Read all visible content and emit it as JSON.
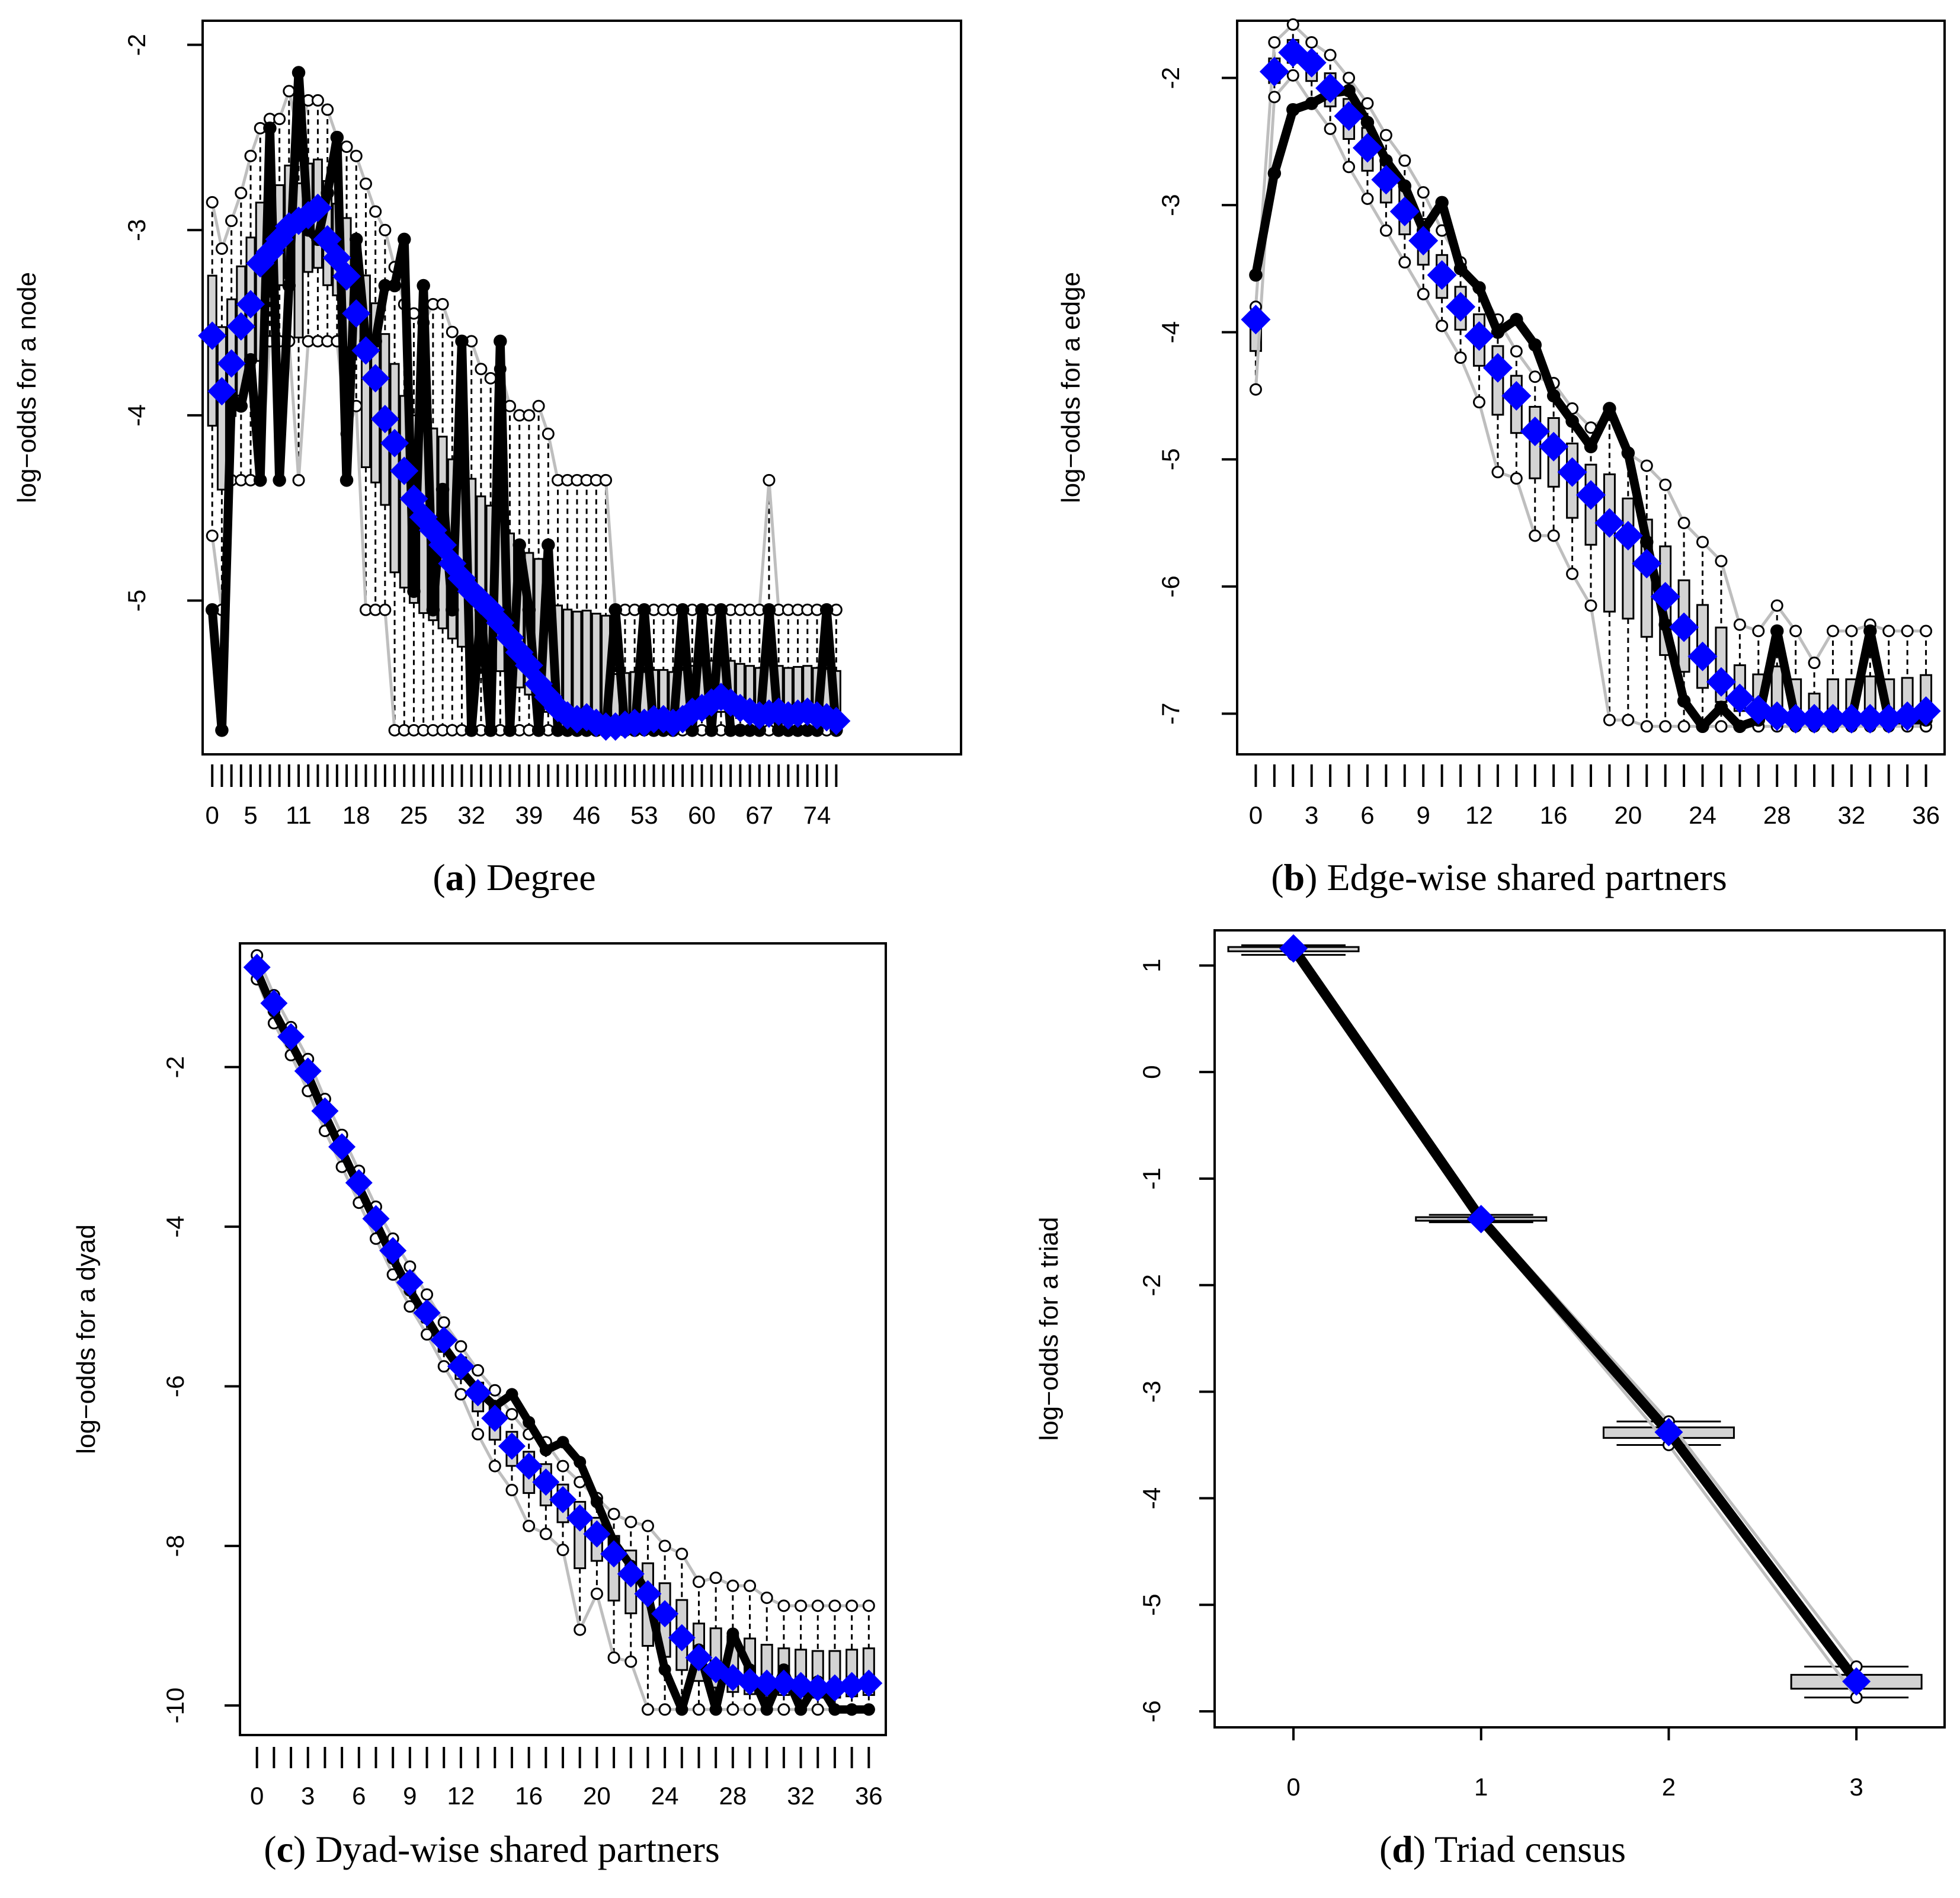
{
  "colors": {
    "observed": "#000000",
    "model": "#0000ff",
    "ci_line": "#bebebe",
    "box_fill": "#d3d3d3",
    "frame": "#000000"
  },
  "chart_data": [
    {
      "type": "box",
      "panel": "a",
      "caption_letter": "a",
      "caption_text": "Degree",
      "ylabel": "log−odds for a node",
      "xlim": [
        -1,
        78
      ],
      "ylim": [
        -5.83,
        -1.87
      ],
      "y_ticks": [
        -2,
        -3,
        -4,
        -5
      ],
      "x_tick_labels": [
        "0",
        "5",
        "11",
        "18",
        "25",
        "32",
        "39",
        "46",
        "53",
        "60",
        "67",
        "74"
      ],
      "x_tick_values": [
        0,
        4,
        9,
        15,
        21,
        27,
        33,
        39,
        45,
        51,
        57,
        63
      ],
      "n_categories": 66,
      "series": [
        {
          "role": "observed",
          "values": [
            -5.05,
            -5.7,
            -3.9,
            -3.95,
            -3.7,
            -4.35,
            -2.45,
            -4.35,
            -3.3,
            -2.15,
            -3.0,
            -3.05,
            -2.8,
            -2.5,
            -4.35,
            -3.05,
            -3.6,
            -3.6,
            -3.3,
            -3.3,
            -3.05,
            -4.95,
            -3.3,
            -5.05,
            -4.4,
            -5.05,
            -3.6,
            -5.7,
            -5.05,
            -5.7,
            -3.6,
            -5.7,
            -4.7,
            -5.05,
            -5.7,
            -4.7,
            -5.7,
            -5.7,
            -5.7,
            -5.7,
            -5.7,
            -5.7,
            -5.05,
            -5.7,
            -5.7,
            -5.05,
            -5.7,
            -5.7,
            -5.7,
            -5.05,
            -5.7,
            -5.05,
            -5.7,
            -5.05,
            -5.7,
            -5.7,
            -5.7,
            -5.7,
            -5.05,
            -5.7,
            -5.7,
            -5.7,
            -5.7,
            -5.7,
            -5.05,
            -5.7
          ]
        },
        {
          "role": "model",
          "values": [
            -3.57,
            -3.87,
            -3.72,
            -3.52,
            -3.4,
            -3.18,
            -3.12,
            -3.05,
            -2.98,
            -2.95,
            -2.92,
            -2.88,
            -3.05,
            -3.15,
            -3.25,
            -3.45,
            -3.65,
            -3.8,
            -4.02,
            -4.15,
            -4.3,
            -4.45,
            -4.55,
            -4.62,
            -4.7,
            -4.8,
            -4.88,
            -4.95,
            -5.0,
            -5.05,
            -5.12,
            -5.2,
            -5.28,
            -5.35,
            -5.45,
            -5.52,
            -5.58,
            -5.62,
            -5.64,
            -5.63,
            -5.66,
            -5.68,
            -5.68,
            -5.67,
            -5.66,
            -5.66,
            -5.64,
            -5.64,
            -5.66,
            -5.64,
            -5.6,
            -5.58,
            -5.55,
            -5.52,
            -5.55,
            -5.58,
            -5.6,
            -5.62,
            -5.61,
            -5.6,
            -5.62,
            -5.61,
            -5.6,
            -5.62,
            -5.63,
            -5.65
          ]
        },
        {
          "role": "upper",
          "values": [
            -2.85,
            -3.1,
            -2.95,
            -2.8,
            -2.6,
            -2.45,
            -2.4,
            -2.4,
            -2.25,
            -2.5,
            -2.3,
            -2.3,
            -2.35,
            -2.5,
            -2.55,
            -2.6,
            -2.75,
            -2.9,
            -3.0,
            -3.2,
            -3.4,
            -3.45,
            -3.5,
            -3.4,
            -3.4,
            -3.55,
            -3.6,
            -3.6,
            -3.75,
            -3.8,
            -3.75,
            -3.95,
            -4.0,
            -4.0,
            -3.95,
            -4.1,
            -4.35,
            -4.35,
            -4.35,
            -4.35,
            -4.35,
            -4.35,
            -5.05,
            -5.05,
            -5.05,
            -5.05,
            -5.05,
            -5.05,
            -5.05,
            -5.05,
            -5.05,
            -5.05,
            -5.05,
            -5.05,
            -5.05,
            -5.05,
            -5.05,
            -5.05,
            -4.35,
            -5.05,
            -5.05,
            -5.05,
            -5.05,
            -5.05,
            -5.05,
            -5.05
          ]
        },
        {
          "role": "lower",
          "values": [
            -4.65,
            -5.05,
            -4.35,
            -4.35,
            -4.35,
            -4.35,
            -3.6,
            -3.6,
            -3.6,
            -4.35,
            -3.6,
            -3.6,
            -3.6,
            -3.6,
            -4.1,
            -3.95,
            -5.05,
            -5.05,
            -5.05,
            -5.7,
            -5.7,
            -5.7,
            -5.7,
            -5.7,
            -5.7,
            -5.7,
            -5.7,
            -5.7,
            -5.7,
            -5.7,
            -5.7,
            -5.7,
            -5.7,
            -5.7,
            -5.7,
            -5.7,
            -5.7,
            -5.7,
            -5.7,
            -5.7,
            -5.7,
            -5.7,
            -5.7,
            -5.7,
            -5.7,
            -5.7,
            -5.7,
            -5.7,
            -5.7,
            -5.7,
            -5.7,
            -5.7,
            -5.7,
            -5.7,
            -5.7,
            -5.7,
            -5.7,
            -5.7,
            -5.7,
            -5.7,
            -5.7,
            -5.7,
            -5.7,
            -5.7,
            -5.7,
            -5.7
          ]
        }
      ]
    },
    {
      "type": "box",
      "panel": "b",
      "caption_letter": "b",
      "caption_text": "Edge-wise shared partners",
      "ylabel": "log−odds for a edge",
      "xlim": [
        -1,
        37
      ],
      "ylim": [
        -7.32,
        -1.55
      ],
      "y_ticks": [
        -2,
        -3,
        -4,
        -5,
        -6,
        -7
      ],
      "x_tick_labels": [
        "0",
        "3",
        "6",
        "9",
        "12",
        "16",
        "20",
        "24",
        "28",
        "32",
        "36"
      ],
      "x_tick_values": [
        0,
        3,
        6,
        9,
        12,
        16,
        20,
        24,
        28,
        32,
        36
      ],
      "n_categories": 37,
      "series": [
        {
          "role": "observed",
          "values": [
            -3.55,
            -2.75,
            -2.25,
            -2.2,
            -2.12,
            -2.1,
            -2.35,
            -2.65,
            -2.85,
            -3.2,
            -2.98,
            -3.5,
            -3.65,
            -4.0,
            -3.9,
            -4.1,
            -4.5,
            -4.7,
            -4.9,
            -4.6,
            -4.95,
            -5.65,
            -6.3,
            -6.9,
            -7.1,
            -6.95,
            -7.1,
            -7.05,
            -6.35,
            -7.05,
            -7.05,
            -7.05,
            -7.05,
            -6.35,
            -7.05,
            -7.05,
            -7.05
          ]
        },
        {
          "role": "model",
          "values": [
            -3.9,
            -1.95,
            -1.8,
            -1.88,
            -2.08,
            -2.3,
            -2.55,
            -2.8,
            -3.05,
            -3.28,
            -3.55,
            -3.8,
            -4.03,
            -4.28,
            -4.5,
            -4.78,
            -4.9,
            -5.1,
            -5.28,
            -5.5,
            -5.6,
            -5.82,
            -6.08,
            -6.32,
            -6.55,
            -6.75,
            -6.88,
            -6.97,
            -7.02,
            -7.04,
            -7.04,
            -7.04,
            -7.04,
            -7.04,
            -7.04,
            -7.02,
            -6.98
          ]
        },
        {
          "role": "upper",
          "values": [
            -3.8,
            -1.72,
            -1.58,
            -1.72,
            -1.82,
            -2.0,
            -2.2,
            -2.45,
            -2.65,
            -2.9,
            -3.2,
            -3.45,
            -3.65,
            -3.9,
            -4.15,
            -4.35,
            -4.4,
            -4.6,
            -4.75,
            -4.65,
            -4.95,
            -5.05,
            -5.2,
            -5.5,
            -5.65,
            -5.8,
            -6.3,
            -6.35,
            -6.15,
            -6.35,
            -6.6,
            -6.35,
            -6.35,
            -6.3,
            -6.35,
            -6.35,
            -6.35
          ]
        },
        {
          "role": "lower",
          "values": [
            -4.45,
            -2.15,
            -1.98,
            -2.2,
            -2.4,
            -2.7,
            -2.95,
            -3.2,
            -3.45,
            -3.7,
            -3.95,
            -4.2,
            -4.55,
            -5.1,
            -5.15,
            -5.6,
            -5.6,
            -5.9,
            -6.15,
            -7.05,
            -7.05,
            -7.1,
            -7.1,
            -7.1,
            -7.1,
            -7.1,
            -7.1,
            -7.1,
            -7.1,
            -7.1,
            -7.1,
            -7.1,
            -7.1,
            -7.1,
            -7.1,
            -7.1,
            -7.1
          ]
        }
      ]
    },
    {
      "type": "box",
      "panel": "c",
      "caption_letter": "c",
      "caption_text": "Dyad-wise shared partners",
      "ylabel": "log−odds for a dyad",
      "xlim": [
        -1,
        37
      ],
      "ylim": [
        -10.37,
        -0.45
      ],
      "y_ticks": [
        -2,
        -4,
        -6,
        -8,
        -10
      ],
      "x_tick_labels": [
        "0",
        "3",
        "6",
        "9",
        "12",
        "16",
        "20",
        "24",
        "28",
        "32",
        "36"
      ],
      "x_tick_values": [
        0,
        3,
        6,
        9,
        12,
        16,
        20,
        24,
        28,
        32,
        36
      ],
      "n_categories": 37,
      "series": [
        {
          "role": "observed",
          "values": [
            -0.8,
            -1.3,
            -1.7,
            -2.1,
            -2.6,
            -3.05,
            -3.5,
            -3.95,
            -4.4,
            -4.8,
            -5.15,
            -5.5,
            -5.8,
            -6.05,
            -6.25,
            -6.1,
            -6.45,
            -6.8,
            -6.7,
            -6.95,
            -7.45,
            -7.95,
            -8.25,
            -8.6,
            -9.55,
            -10.05,
            -9.3,
            -10.05,
            -9.1,
            -9.55,
            -10.05,
            -9.55,
            -10.05,
            -9.7,
            -10.05,
            -10.05,
            -10.05
          ]
        },
        {
          "role": "model",
          "values": [
            -0.75,
            -1.2,
            -1.62,
            -2.05,
            -2.55,
            -3.0,
            -3.45,
            -3.9,
            -4.3,
            -4.7,
            -5.08,
            -5.42,
            -5.75,
            -6.08,
            -6.4,
            -6.75,
            -7.0,
            -7.2,
            -7.42,
            -7.65,
            -7.85,
            -8.1,
            -8.35,
            -8.6,
            -8.85,
            -9.15,
            -9.4,
            -9.55,
            -9.65,
            -9.7,
            -9.72,
            -9.72,
            -9.75,
            -9.78,
            -9.78,
            -9.75,
            -9.72
          ]
        },
        {
          "role": "upper",
          "values": [
            -0.6,
            -1.1,
            -1.5,
            -1.9,
            -2.4,
            -2.85,
            -3.3,
            -3.75,
            -4.15,
            -4.5,
            -4.85,
            -5.2,
            -5.5,
            -5.8,
            -6.05,
            -6.35,
            -6.6,
            -6.7,
            -7.0,
            -7.2,
            -7.4,
            -7.6,
            -7.7,
            -7.75,
            -8.0,
            -8.1,
            -8.45,
            -8.4,
            -8.5,
            -8.5,
            -8.65,
            -8.75,
            -8.75,
            -8.75,
            -8.75,
            -8.75,
            -8.75
          ]
        },
        {
          "role": "lower",
          "values": [
            -0.9,
            -1.45,
            -1.85,
            -2.3,
            -2.8,
            -3.25,
            -3.7,
            -4.15,
            -4.6,
            -5.0,
            -5.35,
            -5.75,
            -6.1,
            -6.6,
            -7.0,
            -7.3,
            -7.75,
            -7.85,
            -8.05,
            -9.05,
            -8.6,
            -9.4,
            -9.45,
            -10.05,
            -10.05,
            -10.05,
            -10.05,
            -10.05,
            -10.05,
            -10.05,
            -10.05,
            -10.05,
            -10.05,
            -10.05,
            -10.05,
            -10.05,
            -10.05
          ]
        }
      ]
    },
    {
      "type": "box",
      "panel": "d",
      "caption_letter": "d",
      "caption_text": "Triad census",
      "ylabel": "log−odds for a triad",
      "xlim": [
        -0.42,
        3.47
      ],
      "ylim": [
        -6.15,
        1.33
      ],
      "y_ticks": [
        1,
        0,
        -1,
        -2,
        -3,
        -4,
        -5,
        -6
      ],
      "x_tick_labels": [
        "0",
        "1",
        "2",
        "3"
      ],
      "x_tick_values": [
        0,
        1,
        2,
        3
      ],
      "n_categories": 4,
      "series": [
        {
          "role": "observed",
          "values": [
            1.16,
            -1.38,
            -3.38,
            -5.72
          ]
        },
        {
          "role": "model",
          "values": [
            1.16,
            -1.38,
            -3.38,
            -5.72
          ]
        },
        {
          "role": "upper",
          "values": [
            1.19,
            -1.34,
            -3.28,
            -5.58
          ]
        },
        {
          "role": "lower",
          "values": [
            1.1,
            -1.41,
            -3.5,
            -5.87
          ]
        }
      ]
    }
  ]
}
